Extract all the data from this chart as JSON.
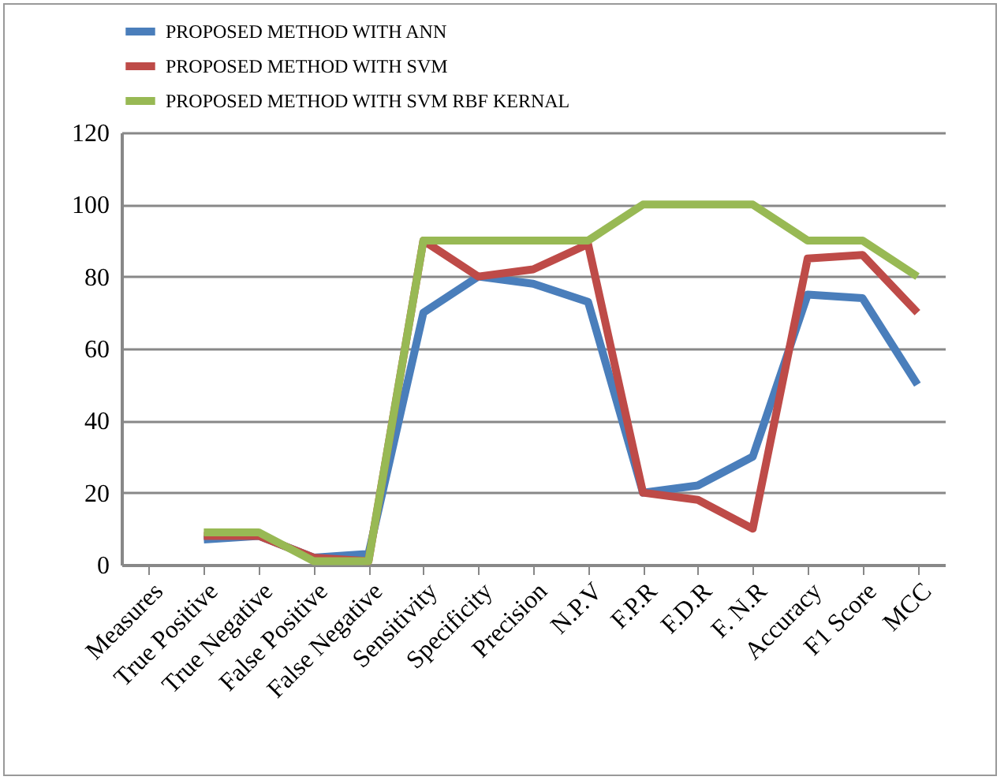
{
  "chart_data": {
    "type": "line",
    "categories": [
      "Measures",
      "True Positive",
      "True Negative",
      "False Positive",
      "False Negative",
      "Sensitivity",
      "Specificity",
      "Precision",
      "N.P.V",
      "F.P.R",
      "F.D.R",
      "F. N.R",
      "Accuracy",
      "F1 Score",
      "MCC"
    ],
    "series": [
      {
        "name": "PROPOSED METHOD WITH ANN",
        "color": "#4a7ebb",
        "values": [
          null,
          7,
          8,
          2,
          3,
          70,
          80,
          78,
          73,
          20,
          22,
          30,
          75,
          74,
          50
        ]
      },
      {
        "name": "PROPOSED METHOD WITH SVM",
        "color": "#be4b48",
        "values": [
          null,
          8,
          8,
          2,
          1,
          90,
          80,
          82,
          89,
          20,
          18,
          10,
          85,
          86,
          70
        ]
      },
      {
        "name": "PROPOSED METHOD WITH SVM RBF KERNAL",
        "color": "#98b954",
        "values": [
          null,
          9,
          9,
          1,
          1,
          90,
          90,
          90,
          90,
          100,
          100,
          100,
          90,
          90,
          80
        ]
      }
    ],
    "ylim": [
      0,
      120
    ],
    "yticks": [
      0,
      20,
      40,
      60,
      80,
      100,
      120
    ],
    "grid": "y",
    "legend": "top",
    "marker": "none",
    "line_style": "solid"
  }
}
